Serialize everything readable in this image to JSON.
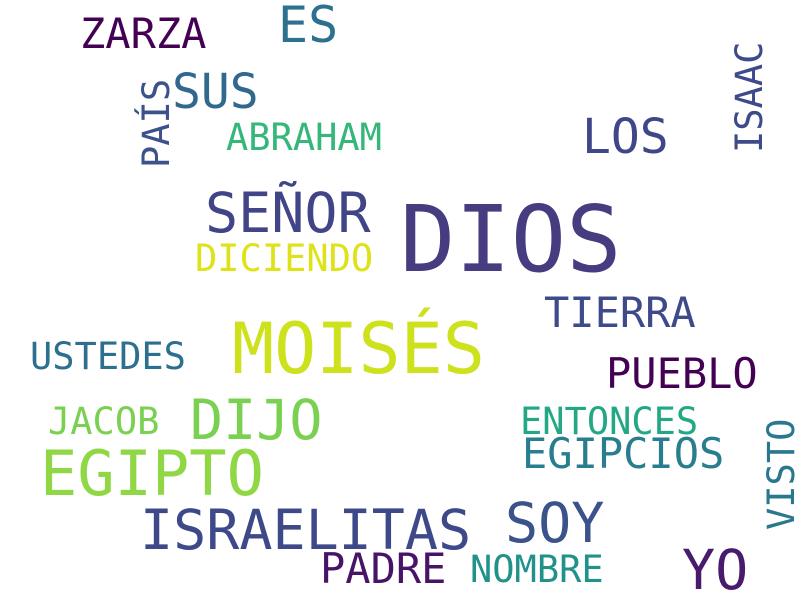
{
  "words": {
    "dios": {
      "text": "DIOS",
      "color": "#463c80"
    },
    "moises": {
      "text": "MOISÉS",
      "color": "#cde11d"
    },
    "egipto": {
      "text": "EGIPTO",
      "color": "#8fd744"
    },
    "israelitas": {
      "text": "ISRAELITAS",
      "color": "#3e4989"
    },
    "senor": {
      "text": "SEÑOR",
      "color": "#414487"
    },
    "dijo": {
      "text": "DIJO",
      "color": "#7ad151"
    },
    "soy": {
      "text": "SOY",
      "color": "#3b528b"
    },
    "yo": {
      "text": "YO",
      "color": "#481b6d"
    },
    "es": {
      "text": "ES",
      "color": "#2c728e"
    },
    "los": {
      "text": "LOS",
      "color": "#3f4788"
    },
    "sus": {
      "text": "SUS",
      "color": "#31688e"
    },
    "zarza": {
      "text": "ZARZA",
      "color": "#440154"
    },
    "padre": {
      "text": "PADRE",
      "color": "#481467"
    },
    "pueblo": {
      "text": "PUEBLO",
      "color": "#440154"
    },
    "tierra": {
      "text": "TIERRA",
      "color": "#3e4a89"
    },
    "egipcios": {
      "text": "EGIPCIOS",
      "color": "#287d8e"
    },
    "entonces": {
      "text": "ENTONCES",
      "color": "#22a884"
    },
    "diciendo": {
      "text": "DICIENDO",
      "color": "#dde318"
    },
    "abraham": {
      "text": "ABRAHAM",
      "color": "#35b779"
    },
    "nombre": {
      "text": "NOMBRE",
      "color": "#21918c"
    },
    "ustedes": {
      "text": "USTEDES",
      "color": "#2d6f8e"
    },
    "jacob": {
      "text": "JACOB",
      "color": "#7ad151"
    },
    "pais": {
      "text": "PAÍS",
      "color": "#3b528b"
    },
    "isaac": {
      "text": "ISAAC",
      "color": "#3e4a89"
    },
    "visto": {
      "text": "VISTO",
      "color": "#2a788e"
    }
  }
}
